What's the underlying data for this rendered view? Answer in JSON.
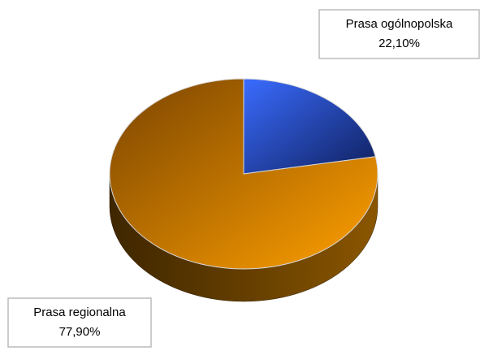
{
  "chart_data": {
    "type": "pie",
    "categories": [
      "Prasa ogólnopolska",
      "Prasa regionalna"
    ],
    "values": [
      22.1,
      77.9
    ],
    "value_labels": [
      "22,10%",
      "77,90%"
    ],
    "colors": [
      "#3366ff",
      "#f29400"
    ]
  }
}
